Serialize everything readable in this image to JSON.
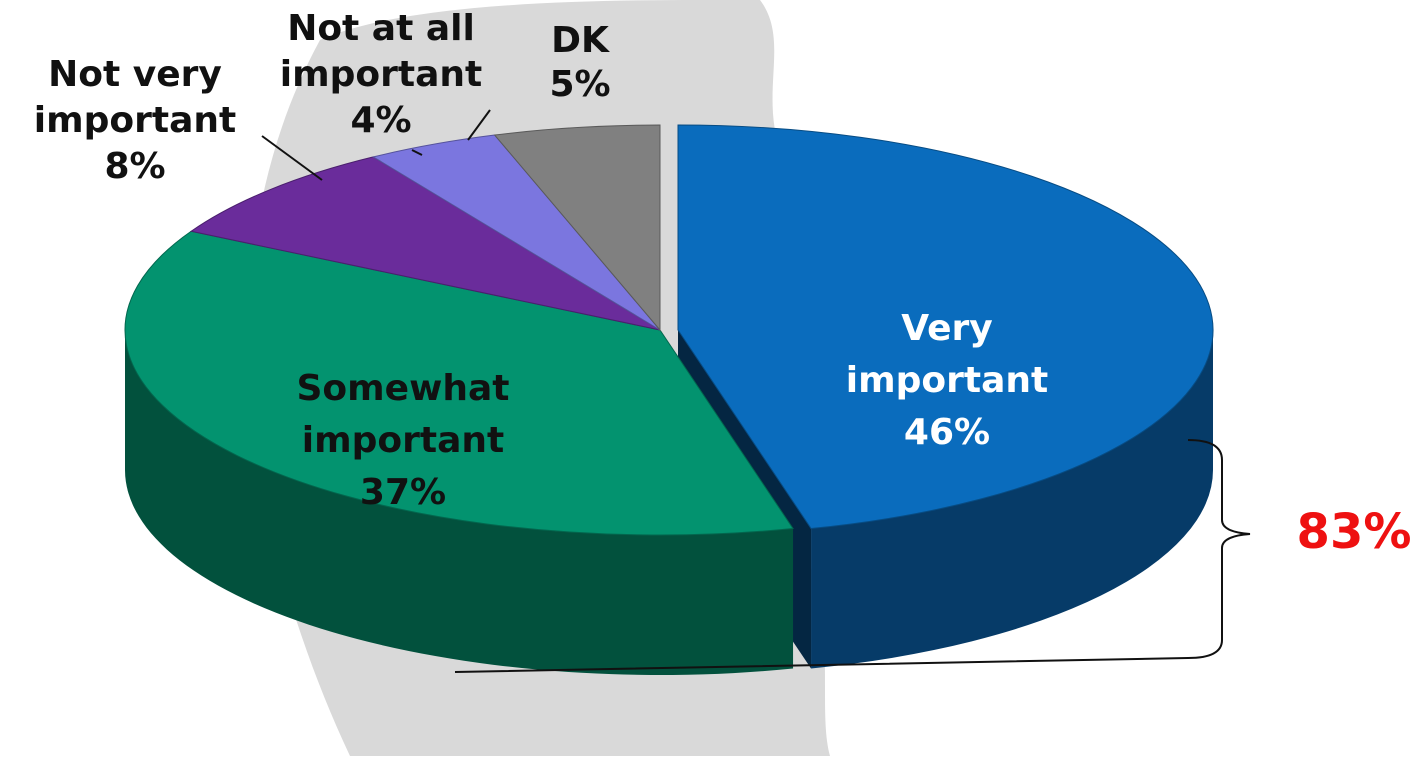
{
  "chart_data": {
    "type": "pie",
    "title": "",
    "slices": [
      {
        "label_lines": [
          "Very",
          "important"
        ],
        "pct_text": "46%",
        "value": 46,
        "color": "#0a6cbd",
        "text_color": "#ffffff"
      },
      {
        "label_lines": [
          "Somewhat",
          "important"
        ],
        "pct_text": "37%",
        "value": 37,
        "color": "#03936f",
        "text_color": "#111111"
      },
      {
        "label_lines": [
          "Not very",
          "important"
        ],
        "pct_text": "8%",
        "value": 8,
        "color": "#6a2c9b",
        "text_color": "#111111"
      },
      {
        "label_lines": [
          "Not at all",
          "important"
        ],
        "pct_text": "4%",
        "value": 4,
        "color": "#7b76df",
        "text_color": "#111111"
      },
      {
        "label_lines": [
          "DK"
        ],
        "pct_text": "5%",
        "value": 5,
        "color": "#808080",
        "text_color": "#111111"
      }
    ],
    "bracket": {
      "text": "83%",
      "value": 83,
      "color": "#ee1111"
    },
    "background_shape_color": "#d9d9d9"
  }
}
